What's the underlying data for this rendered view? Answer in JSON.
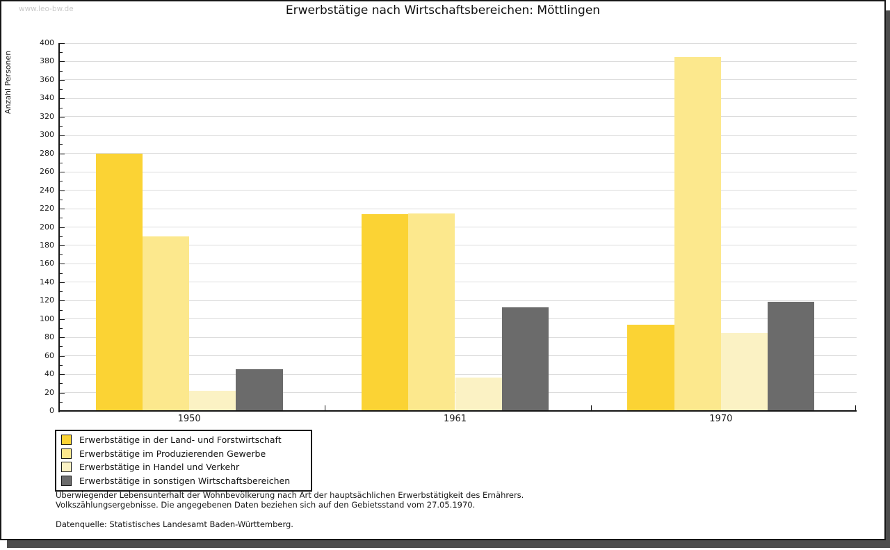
{
  "watermark": "www.leo-bw.de",
  "title": "Erwerbstätige nach Wirtschaftsbereichen: Möttlingen",
  "chart_data": {
    "type": "bar",
    "title": "Erwerbstätige nach Wirtschaftsbereichen: Möttlingen",
    "xlabel": "",
    "ylabel": "Anzahl Personen",
    "categories": [
      "1950",
      "1961",
      "1970"
    ],
    "series": [
      {
        "name": "Erwerbstätige in der Land- und Forstwirtschaft",
        "color": "#fbd334",
        "values": [
          280,
          214,
          94
        ]
      },
      {
        "name": "Erwerbstätige im Produzierenden Gewerbe",
        "color": "#fce88d",
        "values": [
          190,
          215,
          385
        ]
      },
      {
        "name": "Erwerbstätige in Handel und Verkehr",
        "color": "#fbf2c4",
        "values": [
          22,
          36,
          85
        ]
      },
      {
        "name": "Erwerbstätige in sonstigen Wirtschaftsbereichen",
        "color": "#6b6b6b",
        "values": [
          45,
          113,
          119
        ]
      }
    ],
    "ylim": [
      0,
      400
    ],
    "ytick_step": 20,
    "yminor_step": 10,
    "grid": true,
    "legend_position": "bottom-left",
    "colors": {
      "gridline": "#dcdcdc",
      "axis": "#161616",
      "frame_shadow": "#4c4c4c",
      "watermark_text": "#c9c9c9"
    }
  },
  "footnotes": {
    "line1": "Überwiegender Lebensunterhalt der Wohnbevölkerung nach Art der hauptsächlichen Erwerbstätigkeit des Ernährers.",
    "line2": "Volkszählungsergebnisse. Die angegebenen Daten beziehen sich auf den Gebietsstand vom 27.05.1970.",
    "source": "Datenquelle: Statistisches Landesamt Baden-Württemberg."
  }
}
